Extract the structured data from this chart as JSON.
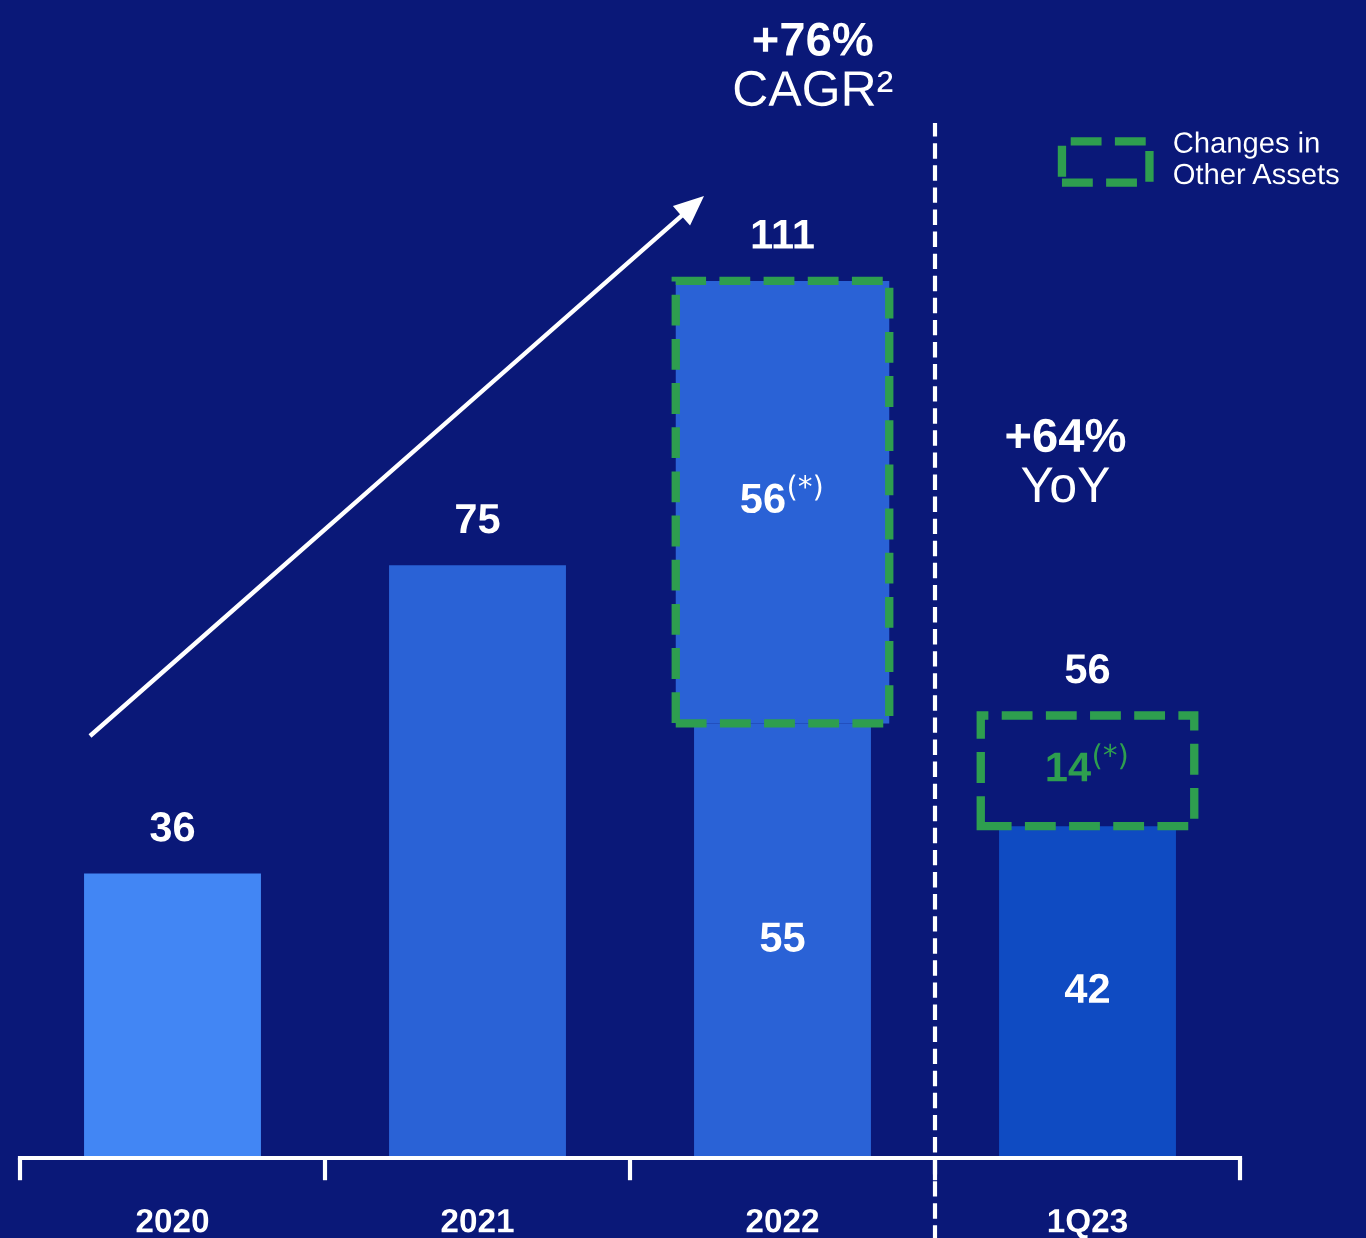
{
  "chart_data": {
    "type": "bar",
    "stacked": true,
    "data_labels": false,
    "grid": false,
    "legend": "top right",
    "categories": [
      "2020",
      "2021",
      "2022",
      "1Q23"
    ],
    "series": [
      {
        "colors": [
          "#4286f4",
          "#2a62d6",
          "#2a62d6",
          "#0f4bc2"
        ],
        "values": [
          36,
          75,
          55,
          42
        ],
        "value_labels": [
          null,
          null,
          "55",
          "42"
        ]
      },
      {
        "name": "Changes in Other Assets",
        "color": "#2e9e4f",
        "colors": [
          null,
          null,
          "#2a62d6",
          null
        ],
        "line_style": "dashed",
        "values": [
          null,
          null,
          56,
          14
        ],
        "value_labels": [
          null,
          null,
          "56$^{(*)}$",
          "14$^{(*)}$"
        ]
      }
    ],
    "totals": [
      "36",
      "75",
      "111",
      "56"
    ],
    "annotations": [
      "+76%\nCAGR²",
      "+64%\nYoY"
    ]
  }
}
